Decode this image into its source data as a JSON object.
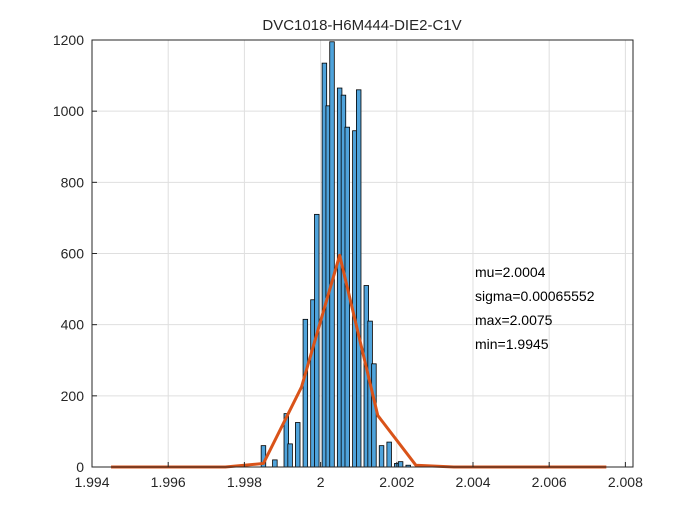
{
  "chart_data": {
    "type": "bar",
    "title": "DVC1018-H6M444-DIE2-C1V",
    "xlabel": "",
    "ylabel": "",
    "xlim": [
      1.994,
      2.0082
    ],
    "ylim": [
      0,
      1200
    ],
    "grid": true,
    "x_ticks": [
      "1.994",
      "1.996",
      "1.998",
      "2",
      "2.002",
      "2.004",
      "2.006",
      "2.008"
    ],
    "y_ticks": [
      "0",
      "200",
      "400",
      "600",
      "800",
      "1000",
      "1200"
    ],
    "bar_color": "#4fa3db",
    "bar_edge_color": "#000000",
    "bar_width": 0.00012,
    "histogram": {
      "x": [
        1.9985,
        1.9988,
        1.9991,
        1.9992,
        1.9994,
        1.9996,
        1.9998,
        1.9999,
        2.0001,
        2.0002,
        2.0003,
        2.0005,
        2.0006,
        2.0007,
        2.0009,
        2.001,
        2.0012,
        2.0013,
        2.0014,
        2.0016,
        2.0018,
        2.002,
        2.0021,
        2.0023
      ],
      "values": [
        60,
        20,
        150,
        65,
        125,
        415,
        470,
        710,
        1135,
        1015,
        1195,
        1065,
        1045,
        955,
        945,
        1060,
        510,
        410,
        290,
        60,
        70,
        10,
        15,
        5
      ]
    },
    "fit_line": {
      "color": "#d95319",
      "x": [
        1.9945,
        1.9975,
        1.9985,
        1.9995,
        2.0005,
        2.0015,
        2.0025,
        2.0035,
        2.0075
      ],
      "y": [
        0,
        0,
        10,
        225,
        595,
        145,
        5,
        0,
        0
      ]
    },
    "annotations": [
      "mu=2.0004",
      "sigma=0.00065552",
      "max=2.0075",
      "min=1.9945"
    ]
  }
}
